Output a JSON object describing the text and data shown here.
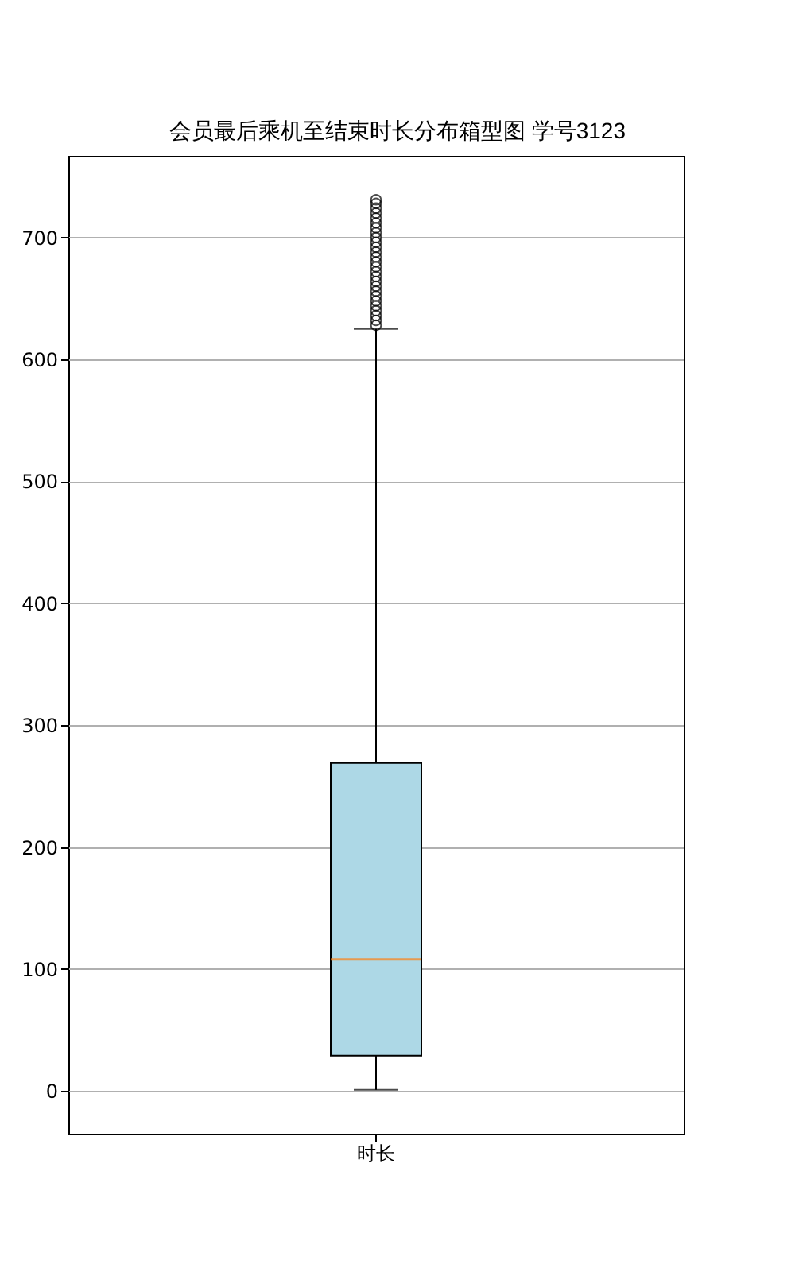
{
  "chart_data": {
    "type": "box",
    "title": "会员最后乘机至结束时长分布箱型图 学号3123",
    "categories": [
      "时长"
    ],
    "boxes": [
      {
        "low": 1,
        "q1": 29,
        "median": 108,
        "q3": 269,
        "high": 625,
        "outliers": [
          628,
          632,
          636,
          640,
          644,
          648,
          652,
          656,
          660,
          664,
          668,
          672,
          676,
          680,
          684,
          688,
          692,
          696,
          700,
          704,
          708,
          712,
          716,
          720,
          724,
          728,
          731
        ]
      }
    ],
    "ylim": [
      -35,
      767
    ],
    "yticks": [
      0,
      100,
      200,
      300,
      400,
      500,
      600,
      700
    ],
    "grid": "y"
  }
}
